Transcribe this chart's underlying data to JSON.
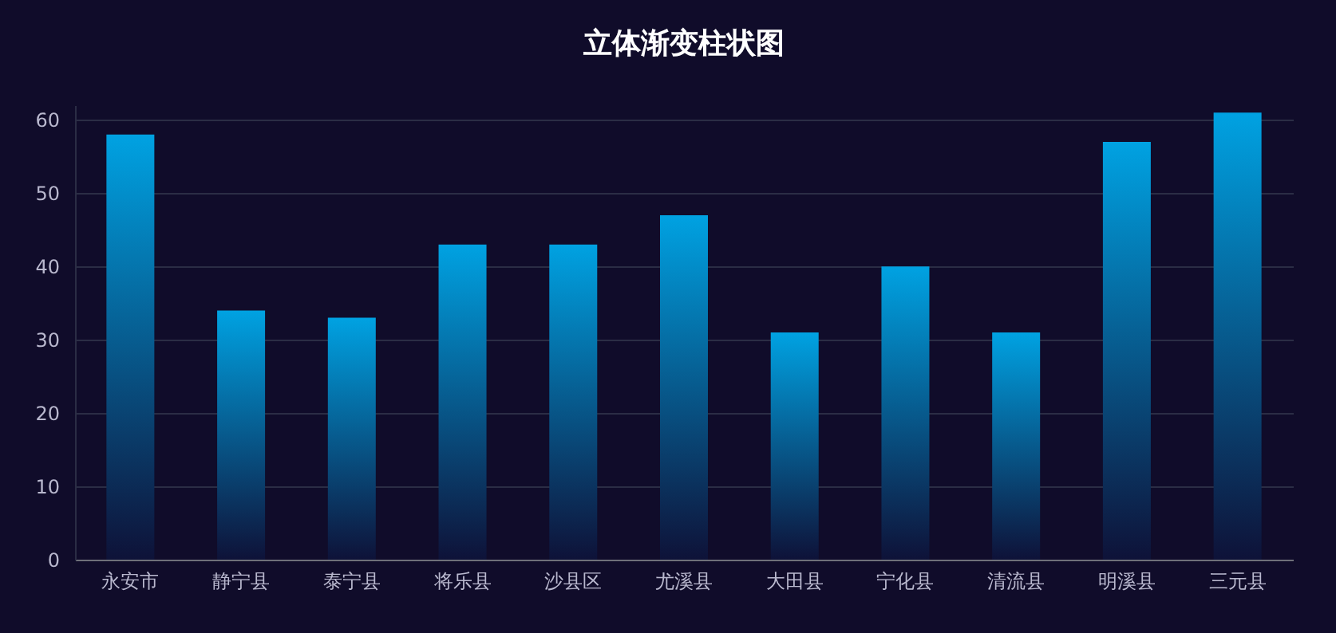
{
  "chart_data": {
    "type": "bar",
    "title": "立体渐变柱状图",
    "categories": [
      "永安市",
      "静宁县",
      "泰宁县",
      "将乐县",
      "沙县区",
      "尤溪县",
      "大田县",
      "宁化县",
      "清流县",
      "明溪县",
      "三元县"
    ],
    "values": [
      58,
      34,
      33,
      43,
      43,
      47,
      31,
      40,
      31,
      57,
      61
    ],
    "color": "#00a2e2",
    "ylim": [
      0,
      62
    ],
    "yticks": [
      0,
      10,
      20,
      30,
      40,
      50,
      60
    ],
    "grid": "y"
  }
}
